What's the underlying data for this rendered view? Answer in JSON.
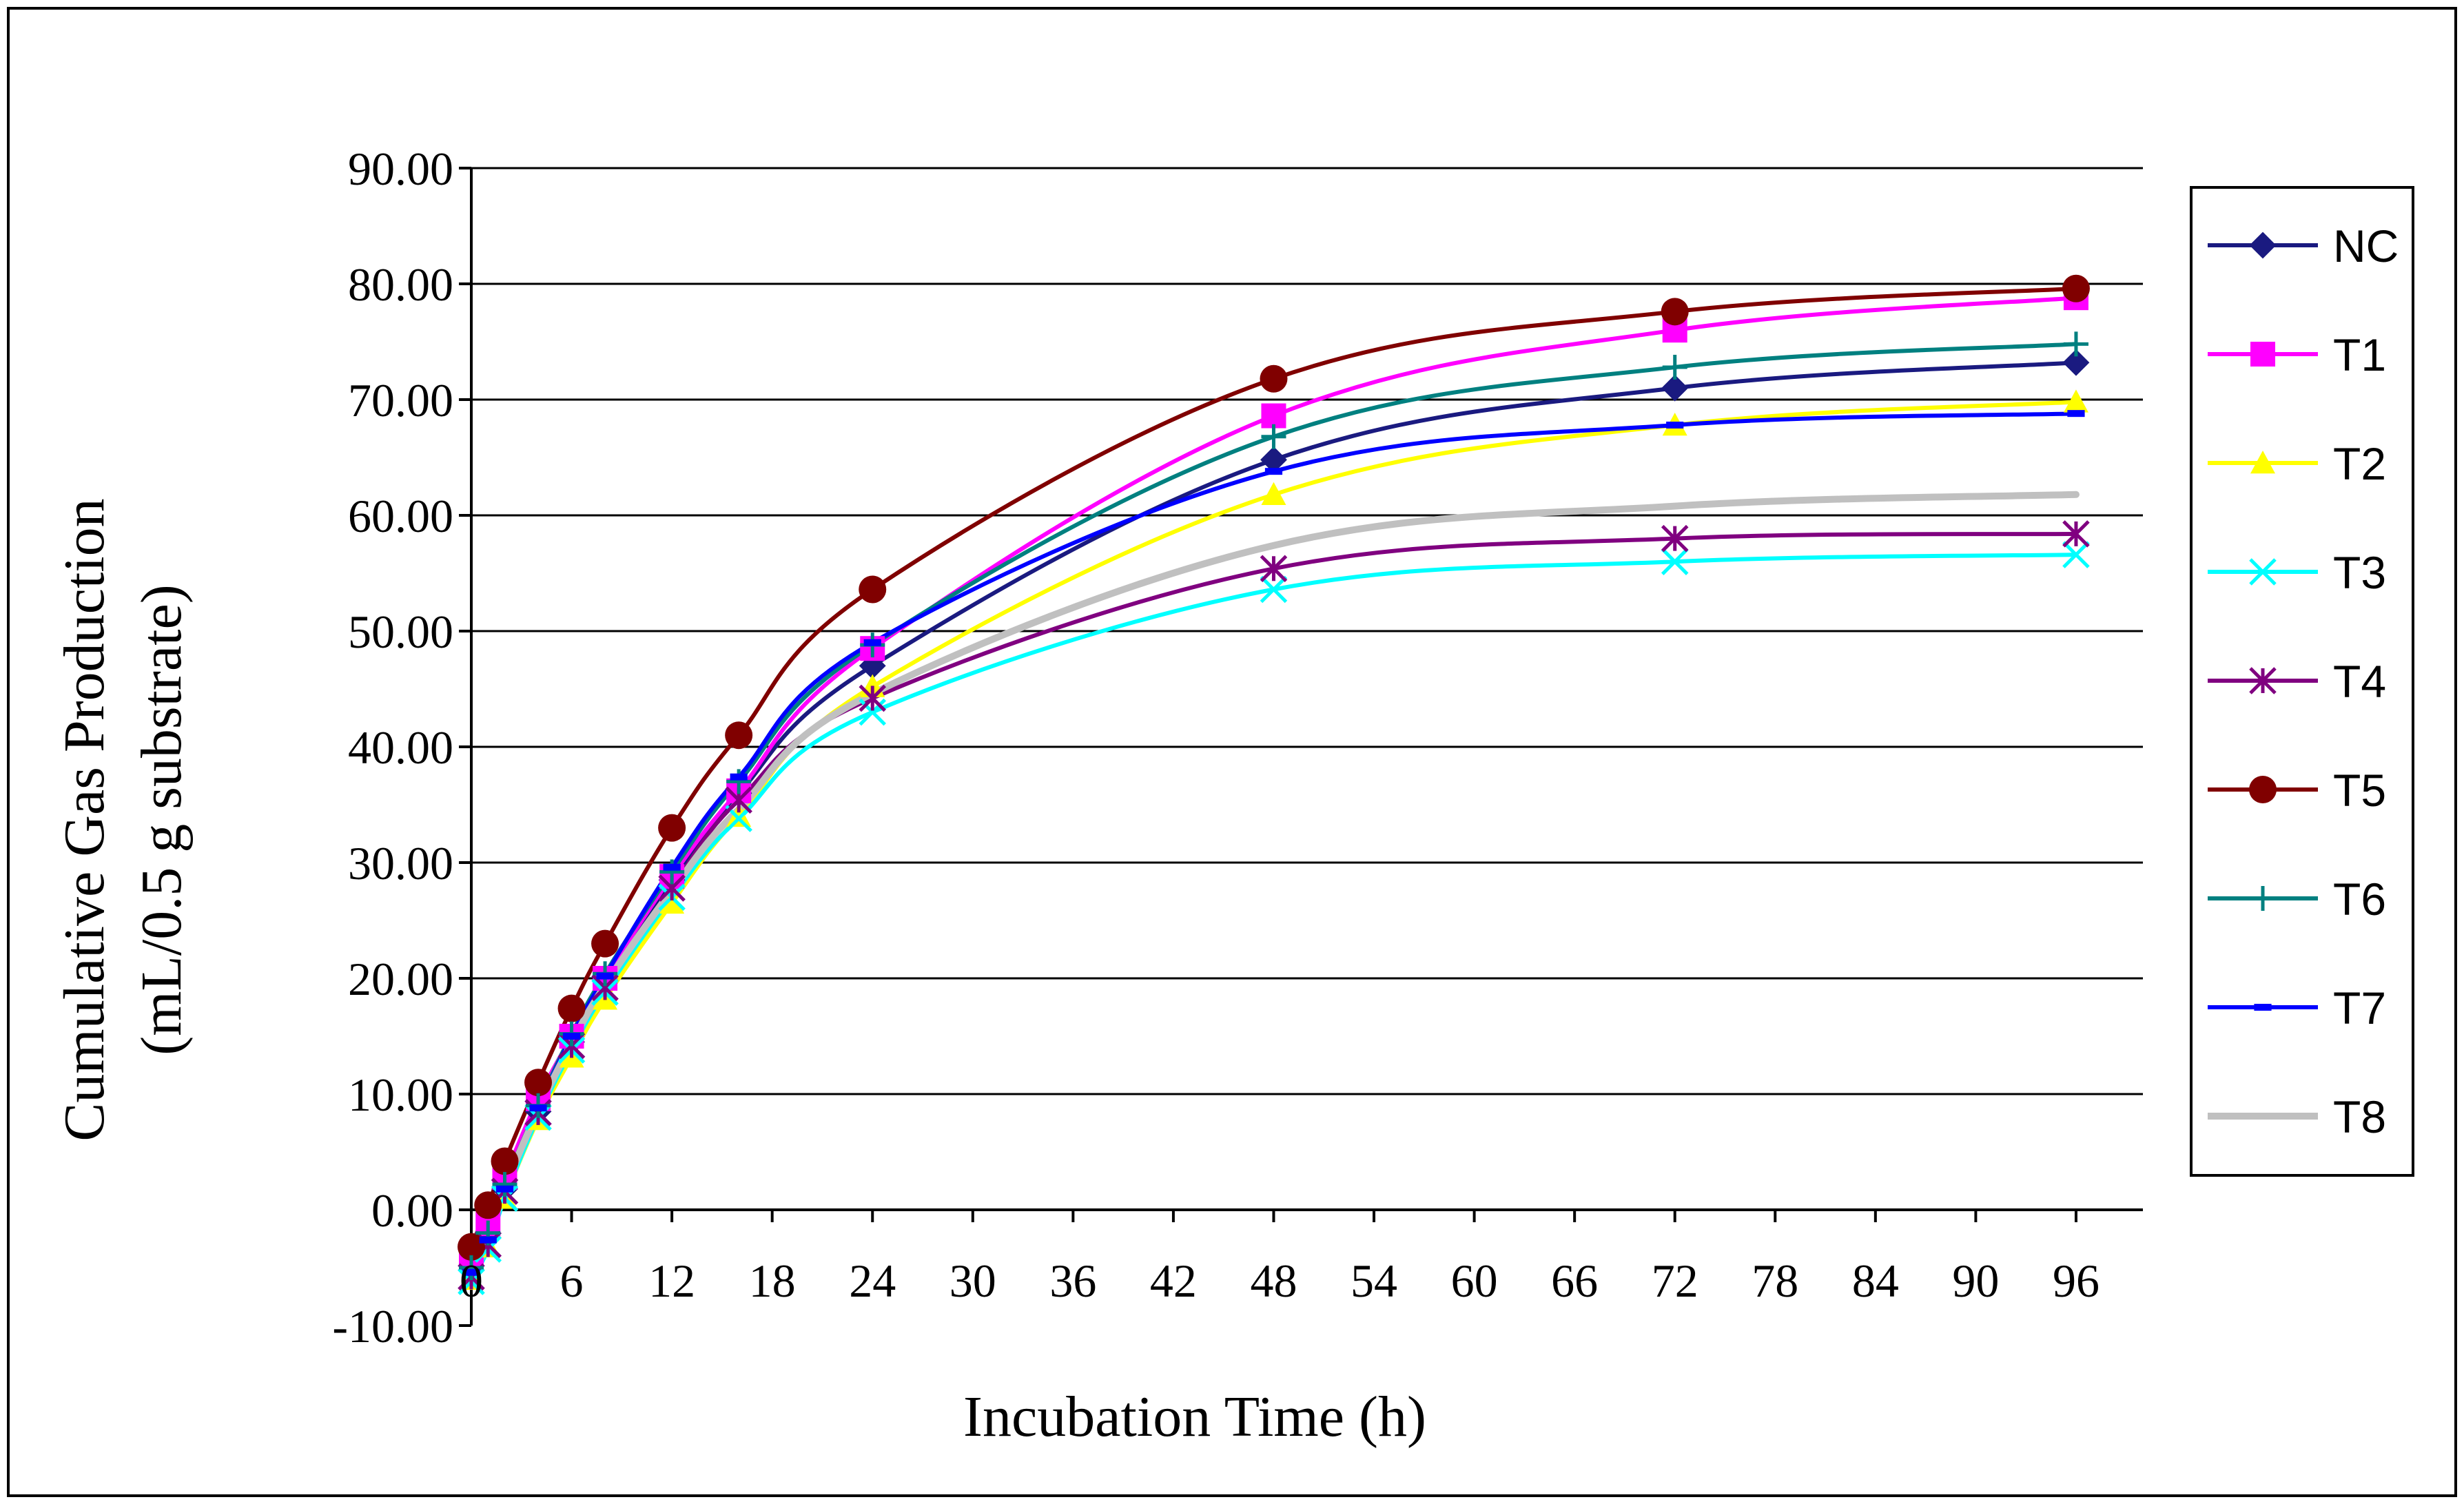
{
  "chart_data": {
    "type": "line",
    "title": "",
    "xlabel": "Incubation Time (h)",
    "ylabel_lines": [
      "Cumulative Gas Production",
      "(mL/0.5 g substrate)"
    ],
    "x": [
      0,
      1,
      2,
      4,
      6,
      8,
      12,
      16,
      24,
      48,
      72,
      96
    ],
    "xlim": [
      0,
      100
    ],
    "ylim": [
      -10,
      90
    ],
    "x_ticks": [
      0,
      6,
      12,
      18,
      24,
      30,
      36,
      42,
      48,
      54,
      60,
      66,
      72,
      78,
      84,
      90,
      96
    ],
    "x_tick_labels": [
      "0",
      "6",
      "12",
      "18",
      "24",
      "30",
      "36",
      "42",
      "48",
      "54",
      "60",
      "66",
      "72",
      "78",
      "84",
      "90",
      "96"
    ],
    "y_ticks": [
      -10,
      0,
      10,
      20,
      30,
      40,
      50,
      60,
      70,
      80,
      90
    ],
    "y_tick_labels": [
      "-10.00",
      "0.00",
      "10.00",
      "20.00",
      "30.00",
      "40.00",
      "50.00",
      "60.00",
      "70.00",
      "80.00",
      "90.00"
    ],
    "grid": "horizontal",
    "legend_position": "right",
    "series": [
      {
        "name": "NC",
        "color": "#1a1a80",
        "marker": "diamond",
        "values": [
          -5.2,
          -2.4,
          1.8,
          8.5,
          14.5,
          19.8,
          28.5,
          36.0,
          47.0,
          64.8,
          71.0,
          73.2
        ]
      },
      {
        "name": "T1",
        "color": "#ff00ff",
        "marker": "square",
        "values": [
          -4.2,
          -1.2,
          2.8,
          9.6,
          15.0,
          20.0,
          28.8,
          36.2,
          48.5,
          68.6,
          76.0,
          78.8
        ]
      },
      {
        "name": "T2",
        "color": "#ffff00",
        "marker": "triangle",
        "values": [
          -6.0,
          -3.2,
          1.0,
          7.8,
          13.2,
          18.2,
          26.5,
          34.0,
          45.2,
          61.8,
          67.8,
          69.8
        ]
      },
      {
        "name": "T3",
        "color": "#00ffff",
        "marker": "x",
        "values": [
          -6.2,
          -3.4,
          1.0,
          8.0,
          13.8,
          18.8,
          27.0,
          33.8,
          43.0,
          53.6,
          56.0,
          56.6
        ]
      },
      {
        "name": "T4",
        "color": "#800080",
        "marker": "star",
        "values": [
          -5.8,
          -3.0,
          1.6,
          8.4,
          14.2,
          19.2,
          27.8,
          35.4,
          44.2,
          55.4,
          58.0,
          58.4
        ]
      },
      {
        "name": "T5",
        "color": "#800000",
        "marker": "circle",
        "values": [
          -3.2,
          0.4,
          4.2,
          11.0,
          17.4,
          23.0,
          33.0,
          41.0,
          53.6,
          71.8,
          77.6,
          79.6
        ]
      },
      {
        "name": "T6",
        "color": "#008080",
        "marker": "plus",
        "values": [
          -5.0,
          -2.0,
          2.2,
          9.0,
          15.2,
          20.4,
          29.2,
          37.0,
          48.8,
          66.8,
          72.8,
          74.8
        ]
      },
      {
        "name": "T7",
        "color": "#0000ff",
        "marker": "dash",
        "values": [
          -5.4,
          -2.6,
          1.8,
          8.8,
          15.0,
          20.2,
          29.6,
          37.4,
          49.0,
          63.8,
          67.8,
          68.8
        ]
      },
      {
        "name": "T8",
        "color": "#c0c0c0",
        "marker": "none",
        "values": [
          -5.6,
          -2.8,
          1.8,
          8.6,
          14.4,
          19.4,
          27.6,
          34.6,
          44.6,
          57.4,
          60.8,
          61.8
        ]
      }
    ]
  }
}
